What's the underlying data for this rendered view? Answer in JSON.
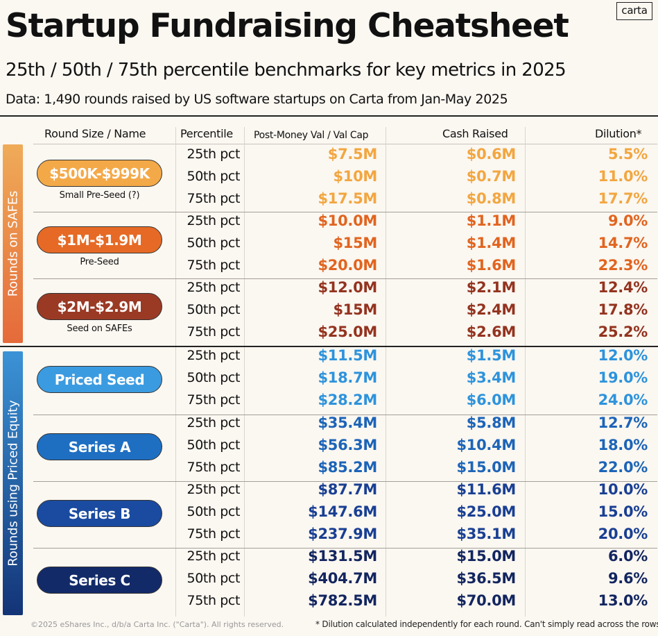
{
  "title": "Startup Fundraising Cheatsheet",
  "subtitle": "25th / 50th / 75th percentile benchmarks for key metrics in 2025",
  "data_source": "Data: 1,490 rounds raised by US software startups on Carta from Jan-May 2025",
  "logo_text": "carta",
  "columns": {
    "round": "Round Size / Name",
    "percentile": "Percentile",
    "valuation": "Post-Money Val / Val Cap",
    "cash": "Cash Raised",
    "dilution": "Dilution*"
  },
  "sections": [
    {
      "label": "Rounds on SAFEs",
      "color_top": "#efab58",
      "color_bottom": "#e56a3a"
    },
    {
      "label": "Rounds using Priced Equity",
      "color_top": "#3b93d6",
      "color_bottom": "#133477"
    }
  ],
  "rounds": [
    {
      "name": "$500K-$999K",
      "sublabel": "Small Pre-Seed (?)",
      "pill_color": "#f4a948",
      "text_color": "#f2a640",
      "rows": [
        {
          "pct": "25th pct",
          "val": "$7.5M",
          "cash": "$0.6M",
          "dil": "5.5%"
        },
        {
          "pct": "50th pct",
          "val": "$10M",
          "cash": "$0.7M",
          "dil": "11.0%"
        },
        {
          "pct": "75th pct",
          "val": "$17.5M",
          "cash": "$0.8M",
          "dil": "17.7%"
        }
      ]
    },
    {
      "name": "$1M-$1.9M",
      "sublabel": "Pre-Seed",
      "pill_color": "#e66a25",
      "text_color": "#e1641f",
      "rows": [
        {
          "pct": "25th pct",
          "val": "$10.0M",
          "cash": "$1.1M",
          "dil": "9.0%"
        },
        {
          "pct": "50th pct",
          "val": "$15M",
          "cash": "$1.4M",
          "dil": "14.7%"
        },
        {
          "pct": "75th pct",
          "val": "$20.0M",
          "cash": "$1.6M",
          "dil": "22.3%"
        }
      ]
    },
    {
      "name": "$2M-$2.9M",
      "sublabel": "Seed on SAFEs",
      "pill_color": "#9a3a25",
      "text_color": "#93331f",
      "rows": [
        {
          "pct": "25th pct",
          "val": "$12.0M",
          "cash": "$2.1M",
          "dil": "12.4%"
        },
        {
          "pct": "50th pct",
          "val": "$15M",
          "cash": "$2.4M",
          "dil": "17.8%"
        },
        {
          "pct": "75th pct",
          "val": "$25.0M",
          "cash": "$2.6M",
          "dil": "25.2%"
        }
      ]
    },
    {
      "name": "Priced Seed",
      "sublabel": "",
      "pill_color": "#3b9be0",
      "text_color": "#2d93dc",
      "rows": [
        {
          "pct": "25th pct",
          "val": "$11.5M",
          "cash": "$1.5M",
          "dil": "12.0%"
        },
        {
          "pct": "50th pct",
          "val": "$18.7M",
          "cash": "$3.4M",
          "dil": "19.0%"
        },
        {
          "pct": "75th pct",
          "val": "$28.2M",
          "cash": "$6.0M",
          "dil": "24.0%"
        }
      ]
    },
    {
      "name": "Series A",
      "sublabel": "",
      "pill_color": "#1e6fc2",
      "text_color": "#1c64b8",
      "rows": [
        {
          "pct": "25th pct",
          "val": "$35.4M",
          "cash": "$5.8M",
          "dil": "12.7%"
        },
        {
          "pct": "50th pct",
          "val": "$56.3M",
          "cash": "$10.4M",
          "dil": "18.0%"
        },
        {
          "pct": "75th pct",
          "val": "$85.2M",
          "cash": "$15.0M",
          "dil": "22.0%"
        }
      ]
    },
    {
      "name": "Series B",
      "sublabel": "",
      "pill_color": "#1a4ba0",
      "text_color": "#193f93",
      "rows": [
        {
          "pct": "25th pct",
          "val": "$87.7M",
          "cash": "$11.6M",
          "dil": "10.0%"
        },
        {
          "pct": "50th pct",
          "val": "$147.6M",
          "cash": "$25.0M",
          "dil": "15.0%"
        },
        {
          "pct": "75th pct",
          "val": "$237.9M",
          "cash": "$35.1M",
          "dil": "20.0%"
        }
      ]
    },
    {
      "name": "Series C",
      "sublabel": "",
      "pill_color": "#122a68",
      "text_color": "#12255f",
      "rows": [
        {
          "pct": "25th pct",
          "val": "$131.5M",
          "cash": "$15.0M",
          "dil": "6.0%"
        },
        {
          "pct": "50th pct",
          "val": "$404.7M",
          "cash": "$36.5M",
          "dil": "9.6%"
        },
        {
          "pct": "75th pct",
          "val": "$782.5M",
          "cash": "$70.0M",
          "dil": "13.0%"
        }
      ]
    }
  ],
  "footer_left": "©2025 eShares Inc., d/b/a Carta Inc. (\"Carta\"). All rights reserved.",
  "footer_right": "* Dilution calculated independently for each round. Can't simply read across the rows"
}
